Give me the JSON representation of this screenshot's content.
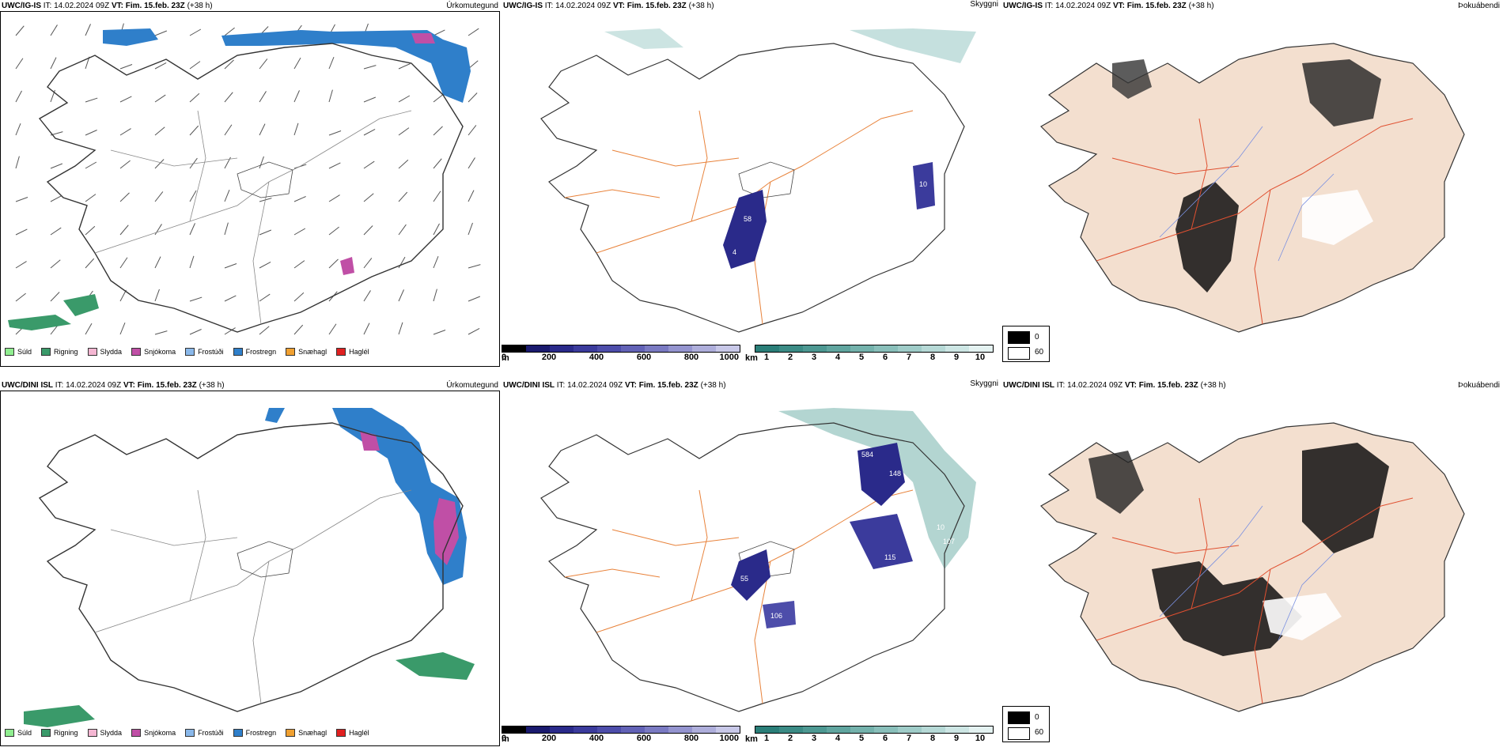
{
  "rows": [
    {
      "row": "top",
      "panels": [
        {
          "model": "UWC/IG-IS",
          "it_label": "IT:",
          "it": "14.02.2024 09Z",
          "vt_label": "VT:",
          "vt": "Fim. 15.feb. 23Z",
          "lead": "(+38 h)",
          "field": "Úrkomutegund"
        },
        {
          "model": "UWC/IG-IS",
          "it_label": "IT:",
          "it": "14.02.2024 09Z",
          "vt_label": "VT:",
          "vt": "Fim. 15.feb. 23Z",
          "lead": "(+38 h)",
          "field": "Skyggni"
        },
        {
          "model": "UWC/IG-IS",
          "it_label": "IT:",
          "it": "14.02.2024 09Z",
          "vt_label": "VT:",
          "vt": "Fim. 15.feb. 23Z",
          "lead": "(+38 h)",
          "field": "Þokuábendi"
        }
      ]
    },
    {
      "row": "bottom",
      "panels": [
        {
          "model": "UWC/DINI ISL",
          "it_label": "IT:",
          "it": "14.02.2024 09Z",
          "vt_label": "VT:",
          "vt": "Fim. 15.feb. 23Z",
          "lead": "(+38 h)",
          "field": "Úrkomutegund"
        },
        {
          "model": "UWC/DINI ISL",
          "it_label": "IT:",
          "it": "14.02.2024 09Z",
          "vt_label": "VT:",
          "vt": "Fim. 15.feb. 23Z",
          "lead": "(+38 h)",
          "field": "Skyggni"
        },
        {
          "model": "UWC/DINI ISL",
          "it_label": "IT:",
          "it": "14.02.2024 09Z",
          "vt_label": "VT:",
          "vt": "Fim. 15.feb. 23Z",
          "lead": "(+38 h)",
          "field": "Þokuábendi"
        }
      ]
    }
  ],
  "precip_legend": [
    {
      "label": "Súld",
      "color": "#90ee90"
    },
    {
      "label": "Rigning",
      "color": "#3a9a6a"
    },
    {
      "label": "Slydda",
      "color": "#f4b6d2"
    },
    {
      "label": "Snjókoma",
      "color": "#c04fa6"
    },
    {
      "label": "Frostúði",
      "color": "#8ab8ea"
    },
    {
      "label": "Frostregn",
      "color": "#2f7fca"
    },
    {
      "label": "Snæhagl",
      "color": "#f0a030"
    },
    {
      "label": "Haglél",
      "color": "#e02020"
    }
  ],
  "cloud_base_scale": {
    "unit": "m",
    "ticks": [
      "0",
      "200",
      "400",
      "600",
      "800",
      "1000"
    ],
    "colors": [
      "#000000",
      "#1a1a6e",
      "#2a2a8a",
      "#3b3b9c",
      "#4d4daa",
      "#6262b6",
      "#7a7ac2",
      "#9494cf",
      "#aeaedb",
      "#c8c8e8"
    ]
  },
  "visibility_scale": {
    "unit": "km",
    "ticks": [
      "1",
      "2",
      "3",
      "4",
      "5",
      "6",
      "7",
      "8",
      "9",
      "10"
    ],
    "colors": [
      "#2a7e78",
      "#3b8b85",
      "#4d9892",
      "#60a59f",
      "#74b2ac",
      "#89bfba",
      "#9fccc8",
      "#b6d9d6",
      "#cde6e4",
      "#e4f2f1"
    ]
  },
  "fog_legend": [
    {
      "label": "0",
      "color": "#000000"
    },
    {
      "label": "60",
      "color": "#ffffff"
    }
  ],
  "map_labels_top": [
    "58",
    "4",
    "10"
  ],
  "map_labels_bottom": [
    "584",
    "148",
    "10",
    "107",
    "115",
    "106",
    "55"
  ]
}
